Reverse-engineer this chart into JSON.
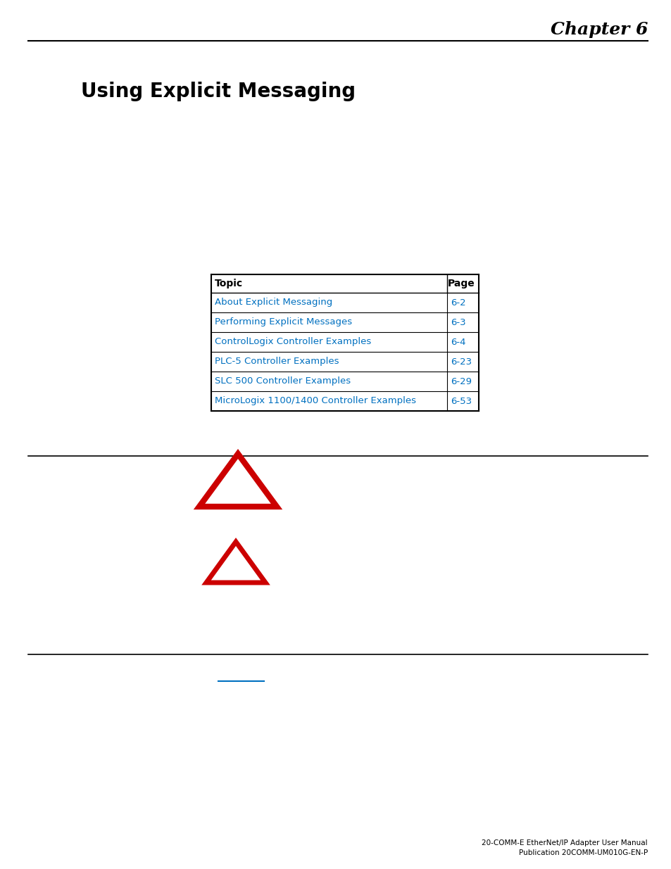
{
  "chapter_text": "Chapter 6",
  "title_text": "Using Explicit Messaging",
  "table_header": [
    "Topic",
    "Page"
  ],
  "table_rows": [
    [
      "About Explicit Messaging",
      "6-2"
    ],
    [
      "Performing Explicit Messages",
      "6-3"
    ],
    [
      "ControlLogix Controller Examples",
      "6-4"
    ],
    [
      "PLC-5 Controller Examples",
      "6-23"
    ],
    [
      "SLC 500 Controller Examples",
      "6-29"
    ],
    [
      "MicroLogix 1100/1400 Controller Examples",
      "6-53"
    ]
  ],
  "link_color": "#0070C0",
  "footer_text_line1": "20-COMM-E EtherNet/IP Adapter User Manual",
  "footer_text_line2": "Publication 20COMM-UM010G-EN-P",
  "bg_color": "#ffffff",
  "triangle1_color": "#CC0000",
  "triangle2_color": "#CC0000"
}
